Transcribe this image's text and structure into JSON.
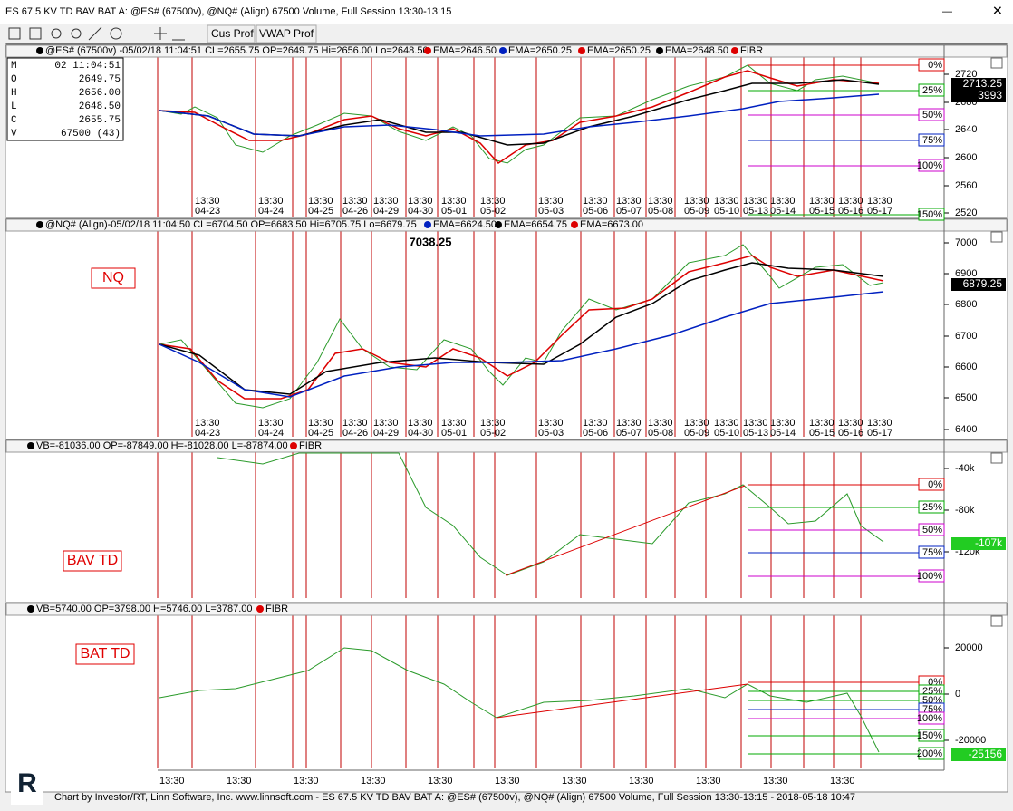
{
  "window": {
    "title": "ES 67.5 KV TD BAV BAT A: @ES# (67500v), @NQ# (Align) 67500 Volume, Full Session 13:30-13:15"
  },
  "toolbar": {
    "buttons": [
      "Cus Prof",
      "VWAP Prof"
    ]
  },
  "session_time": "13:30",
  "session_dates": [
    "04-23",
    "04-24",
    "04-25",
    "04-26",
    "04-29",
    "04-30",
    "05-01",
    "05-02",
    "05-03",
    "05-06",
    "05-07",
    "05-08",
    "05-09",
    "05-10",
    "05-13",
    "05-14",
    "05-15",
    "05-16",
    "05-17"
  ],
  "panes": [
    {
      "header": [
        "@ES# (67500v) -05/02/18 11:04:51 CL=2655.75 OP=2649.75 Hi=2656.00 Lo=2648.50",
        "EMA=2646.50",
        "EMA=2650.25",
        "EMA=2650.25",
        "EMA=2648.50",
        "FIBR"
      ],
      "axis": [
        "2720",
        "2680",
        "2640",
        "2600",
        "2560",
        "2520"
      ],
      "price_boxes": [
        "2713.25",
        "3993"
      ],
      "fib": [
        "0%",
        "25%",
        "50%",
        "75%",
        "100%",
        "150%"
      ],
      "info": [
        [
          "M",
          "02 11:04:51"
        ],
        [
          "O",
          "2649.75"
        ],
        [
          "H",
          "2656.00"
        ],
        [
          "L",
          "2648.50"
        ],
        [
          "C",
          "2655.75"
        ],
        [
          "V",
          "67500 (43)"
        ]
      ]
    },
    {
      "header": [
        "@NQ# (Align)-05/02/18 11:04:50 CL=6704.50 OP=6683.50 Hi=6705.75 Lo=6679.75",
        "EMA=6624.50",
        "EMA=6654.75",
        "EMA=6673.00"
      ],
      "label": "NQ",
      "high_label": "7038.25",
      "axis": [
        "7000",
        "6900",
        "6800",
        "6700",
        "6600",
        "6500",
        "6400"
      ],
      "price_boxes": [
        "6879.25"
      ]
    },
    {
      "header": [
        "VB=-81036.00 OP=-87849.00 H=-81028.00 L=-87874.00",
        "FIBR"
      ],
      "label": "BAV TD",
      "axis": [
        "-40k",
        "-80k",
        "-120k"
      ],
      "price_boxes": [
        "-107k"
      ],
      "fib": [
        "0%",
        "25%",
        "50%",
        "75%",
        "100%"
      ]
    },
    {
      "header": [
        "VB=5740.00 OP=3798.00 H=5746.00 L=3787.00",
        "FIBR"
      ],
      "label": "BAT TD",
      "axis": [
        "20000",
        "0",
        "-20000"
      ],
      "price_boxes": [
        "-25156"
      ],
      "fib": [
        "0%",
        "25%",
        "50%",
        "75%",
        "100%",
        "150%",
        "200%"
      ]
    }
  ],
  "footer": "Chart by Investor/RT, Linn Software, Inc. www.linnsoft.com - ES 67.5 KV TD BAV BAT A: @ES# (67500v), @NQ# (Align) 67500 Volume, Full Session 13:30-13:15 - 2018-05-18 10:47"
}
